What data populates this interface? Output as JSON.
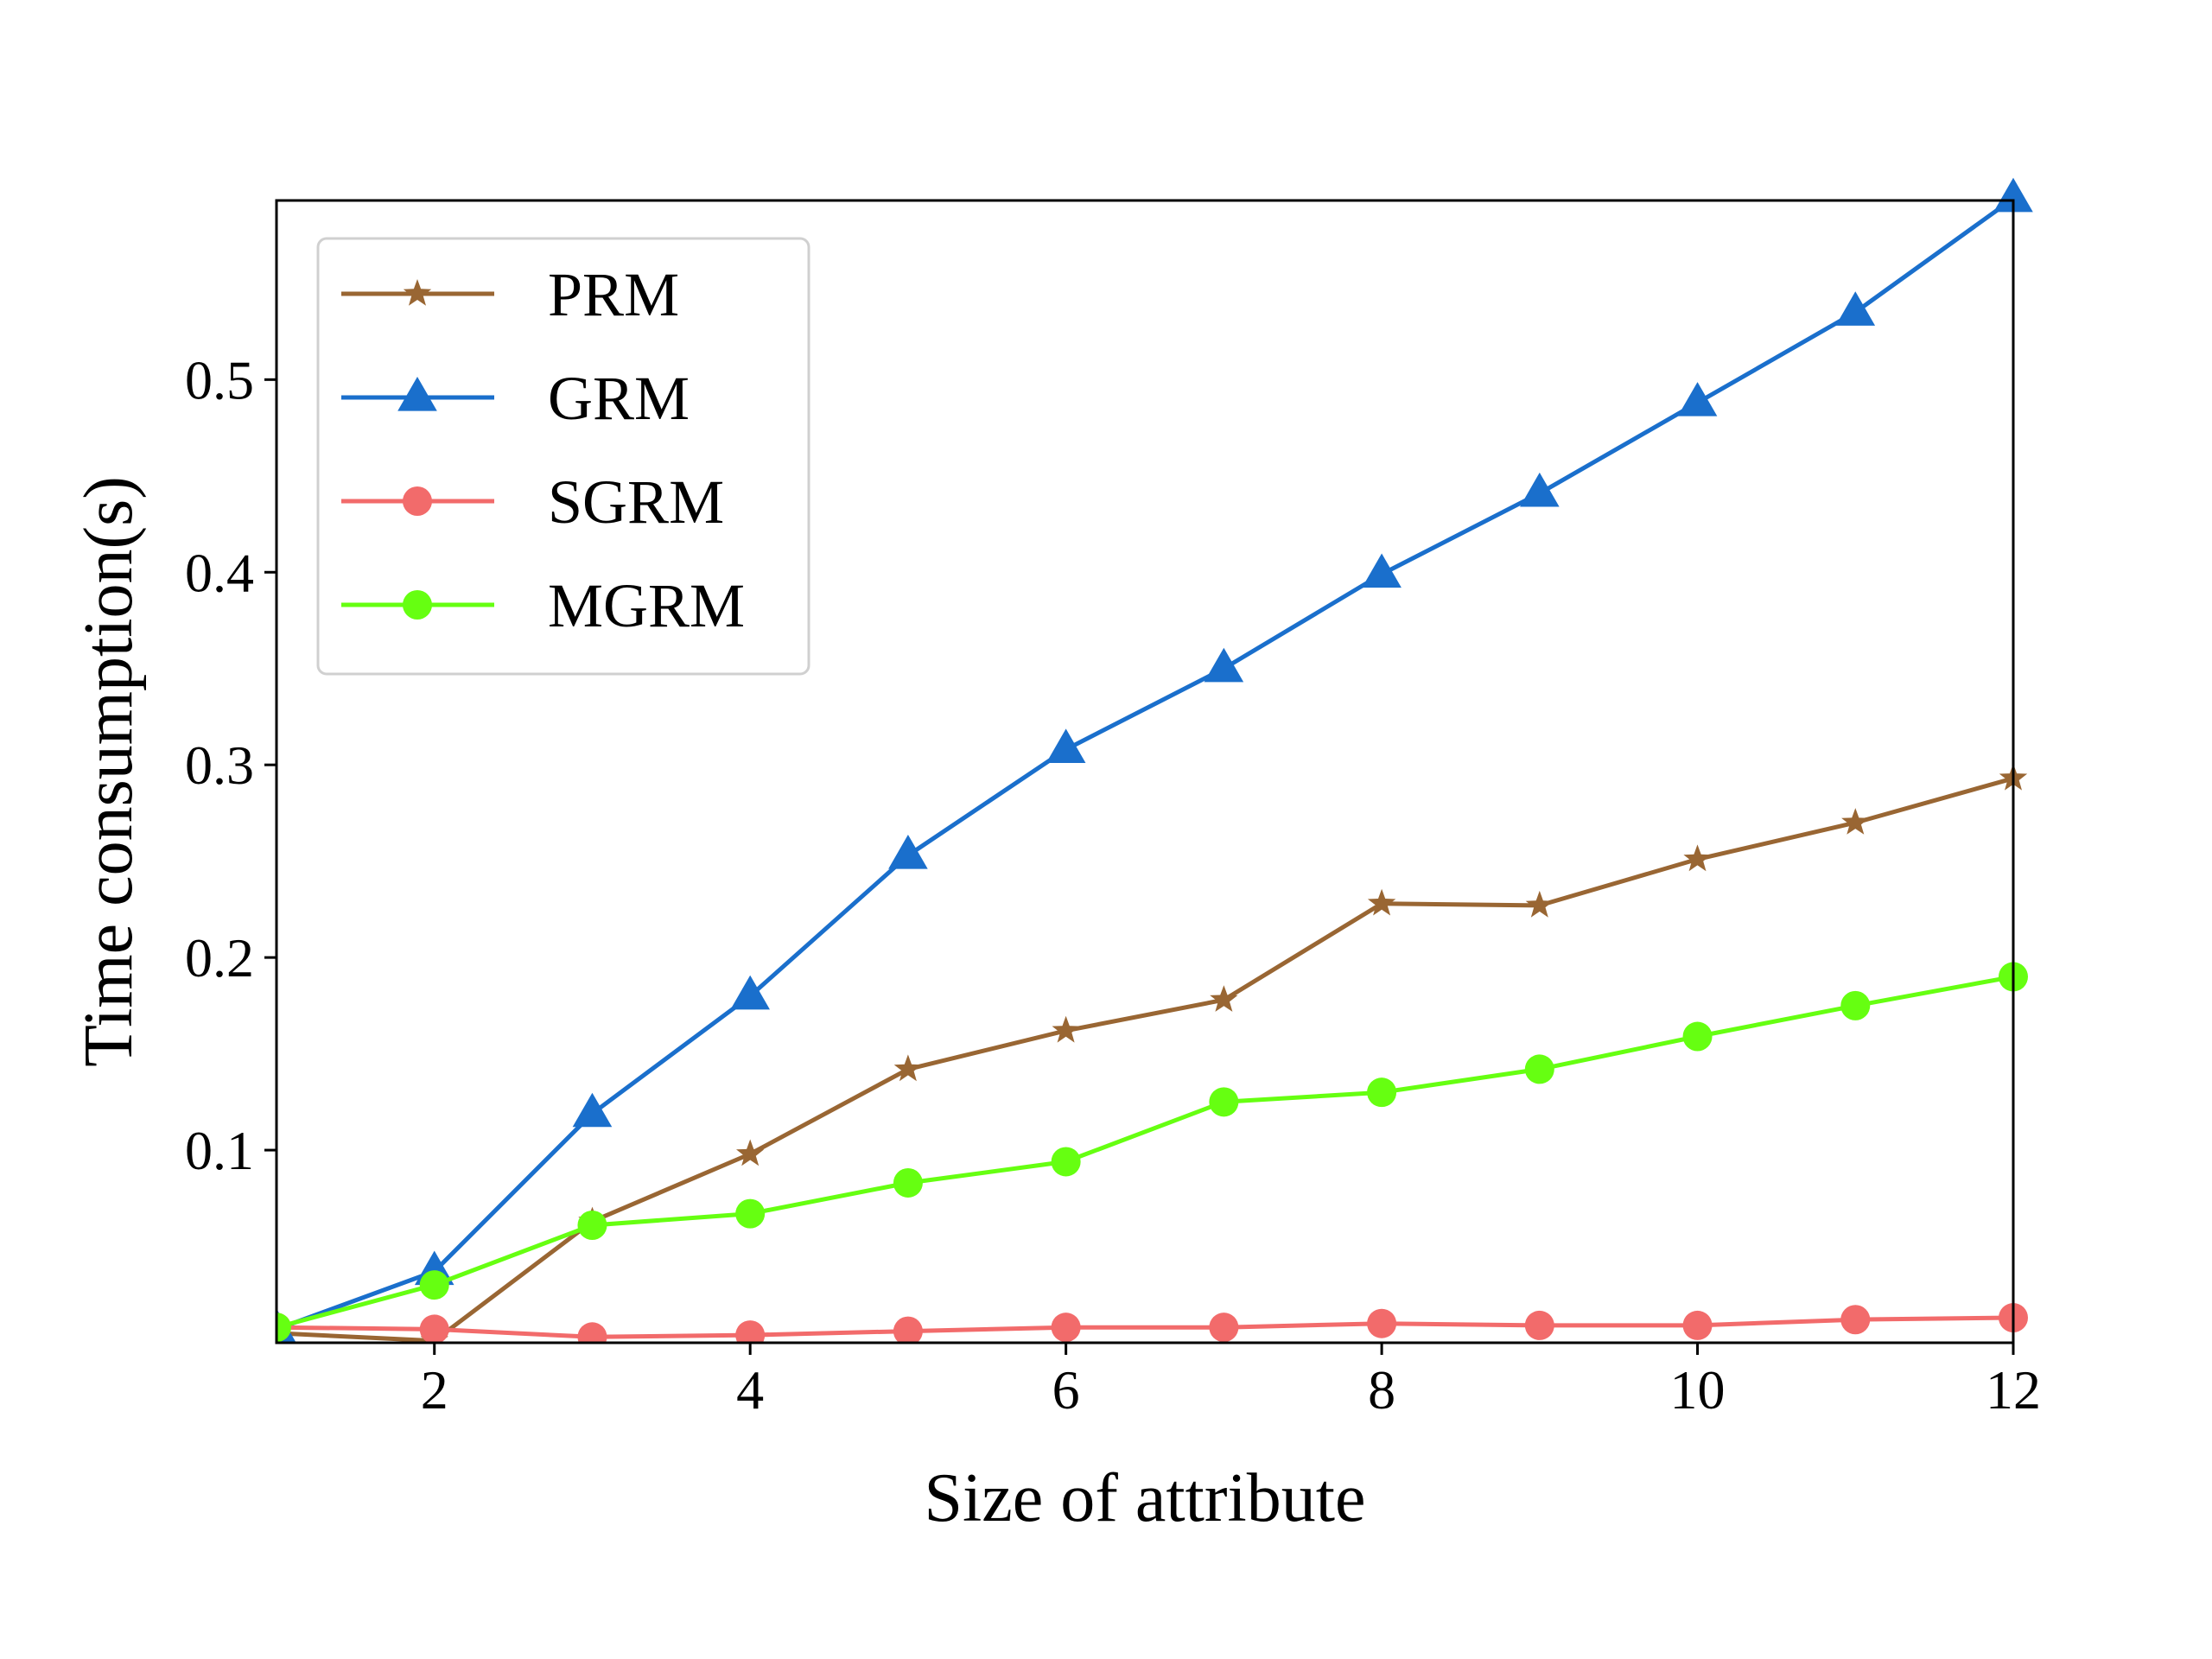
{
  "chart_data": {
    "type": "line",
    "title": "",
    "xlabel": "Size of attribute",
    "ylabel": "Time consumption(s)",
    "xlim": [
      1,
      12
    ],
    "ylim": [
      0.0,
      0.593
    ],
    "x_ticks": [
      2,
      4,
      6,
      8,
      10,
      12
    ],
    "y_ticks": [
      0.1,
      0.2,
      0.3,
      0.4,
      0.5
    ],
    "x_tick_labels": [
      "2",
      "4",
      "6",
      "8",
      "10",
      "12"
    ],
    "y_tick_labels": [
      "0.1",
      "0.2",
      "0.3",
      "0.4",
      "0.5"
    ],
    "grid": false,
    "legend_position": "upper-left",
    "x": [
      1,
      2,
      3,
      4,
      5,
      6,
      7,
      8,
      9,
      10,
      11,
      12
    ],
    "series": [
      {
        "name": "PRM",
        "color": "#996633",
        "marker": "star",
        "values": [
          0.005,
          0.001,
          0.063,
          0.098,
          0.142,
          0.162,
          0.178,
          0.228,
          0.227,
          0.251,
          0.27,
          0.293
        ]
      },
      {
        "name": "GRM",
        "color": "#1a6fcc",
        "marker": "triangle",
        "values": [
          0.007,
          0.037,
          0.119,
          0.18,
          0.253,
          0.308,
          0.35,
          0.399,
          0.441,
          0.488,
          0.535,
          0.594
        ]
      },
      {
        "name": "SGRM",
        "color": "#f26b6b",
        "marker": "circle",
        "values": [
          0.008,
          0.007,
          0.003,
          0.004,
          0.006,
          0.008,
          0.008,
          0.01,
          0.009,
          0.009,
          0.012,
          0.013
        ]
      },
      {
        "name": "MGRM",
        "color": "#66ff11",
        "marker": "circle",
        "values": [
          0.008,
          0.03,
          0.061,
          0.067,
          0.083,
          0.094,
          0.125,
          0.13,
          0.142,
          0.159,
          0.175,
          0.19
        ]
      }
    ]
  }
}
